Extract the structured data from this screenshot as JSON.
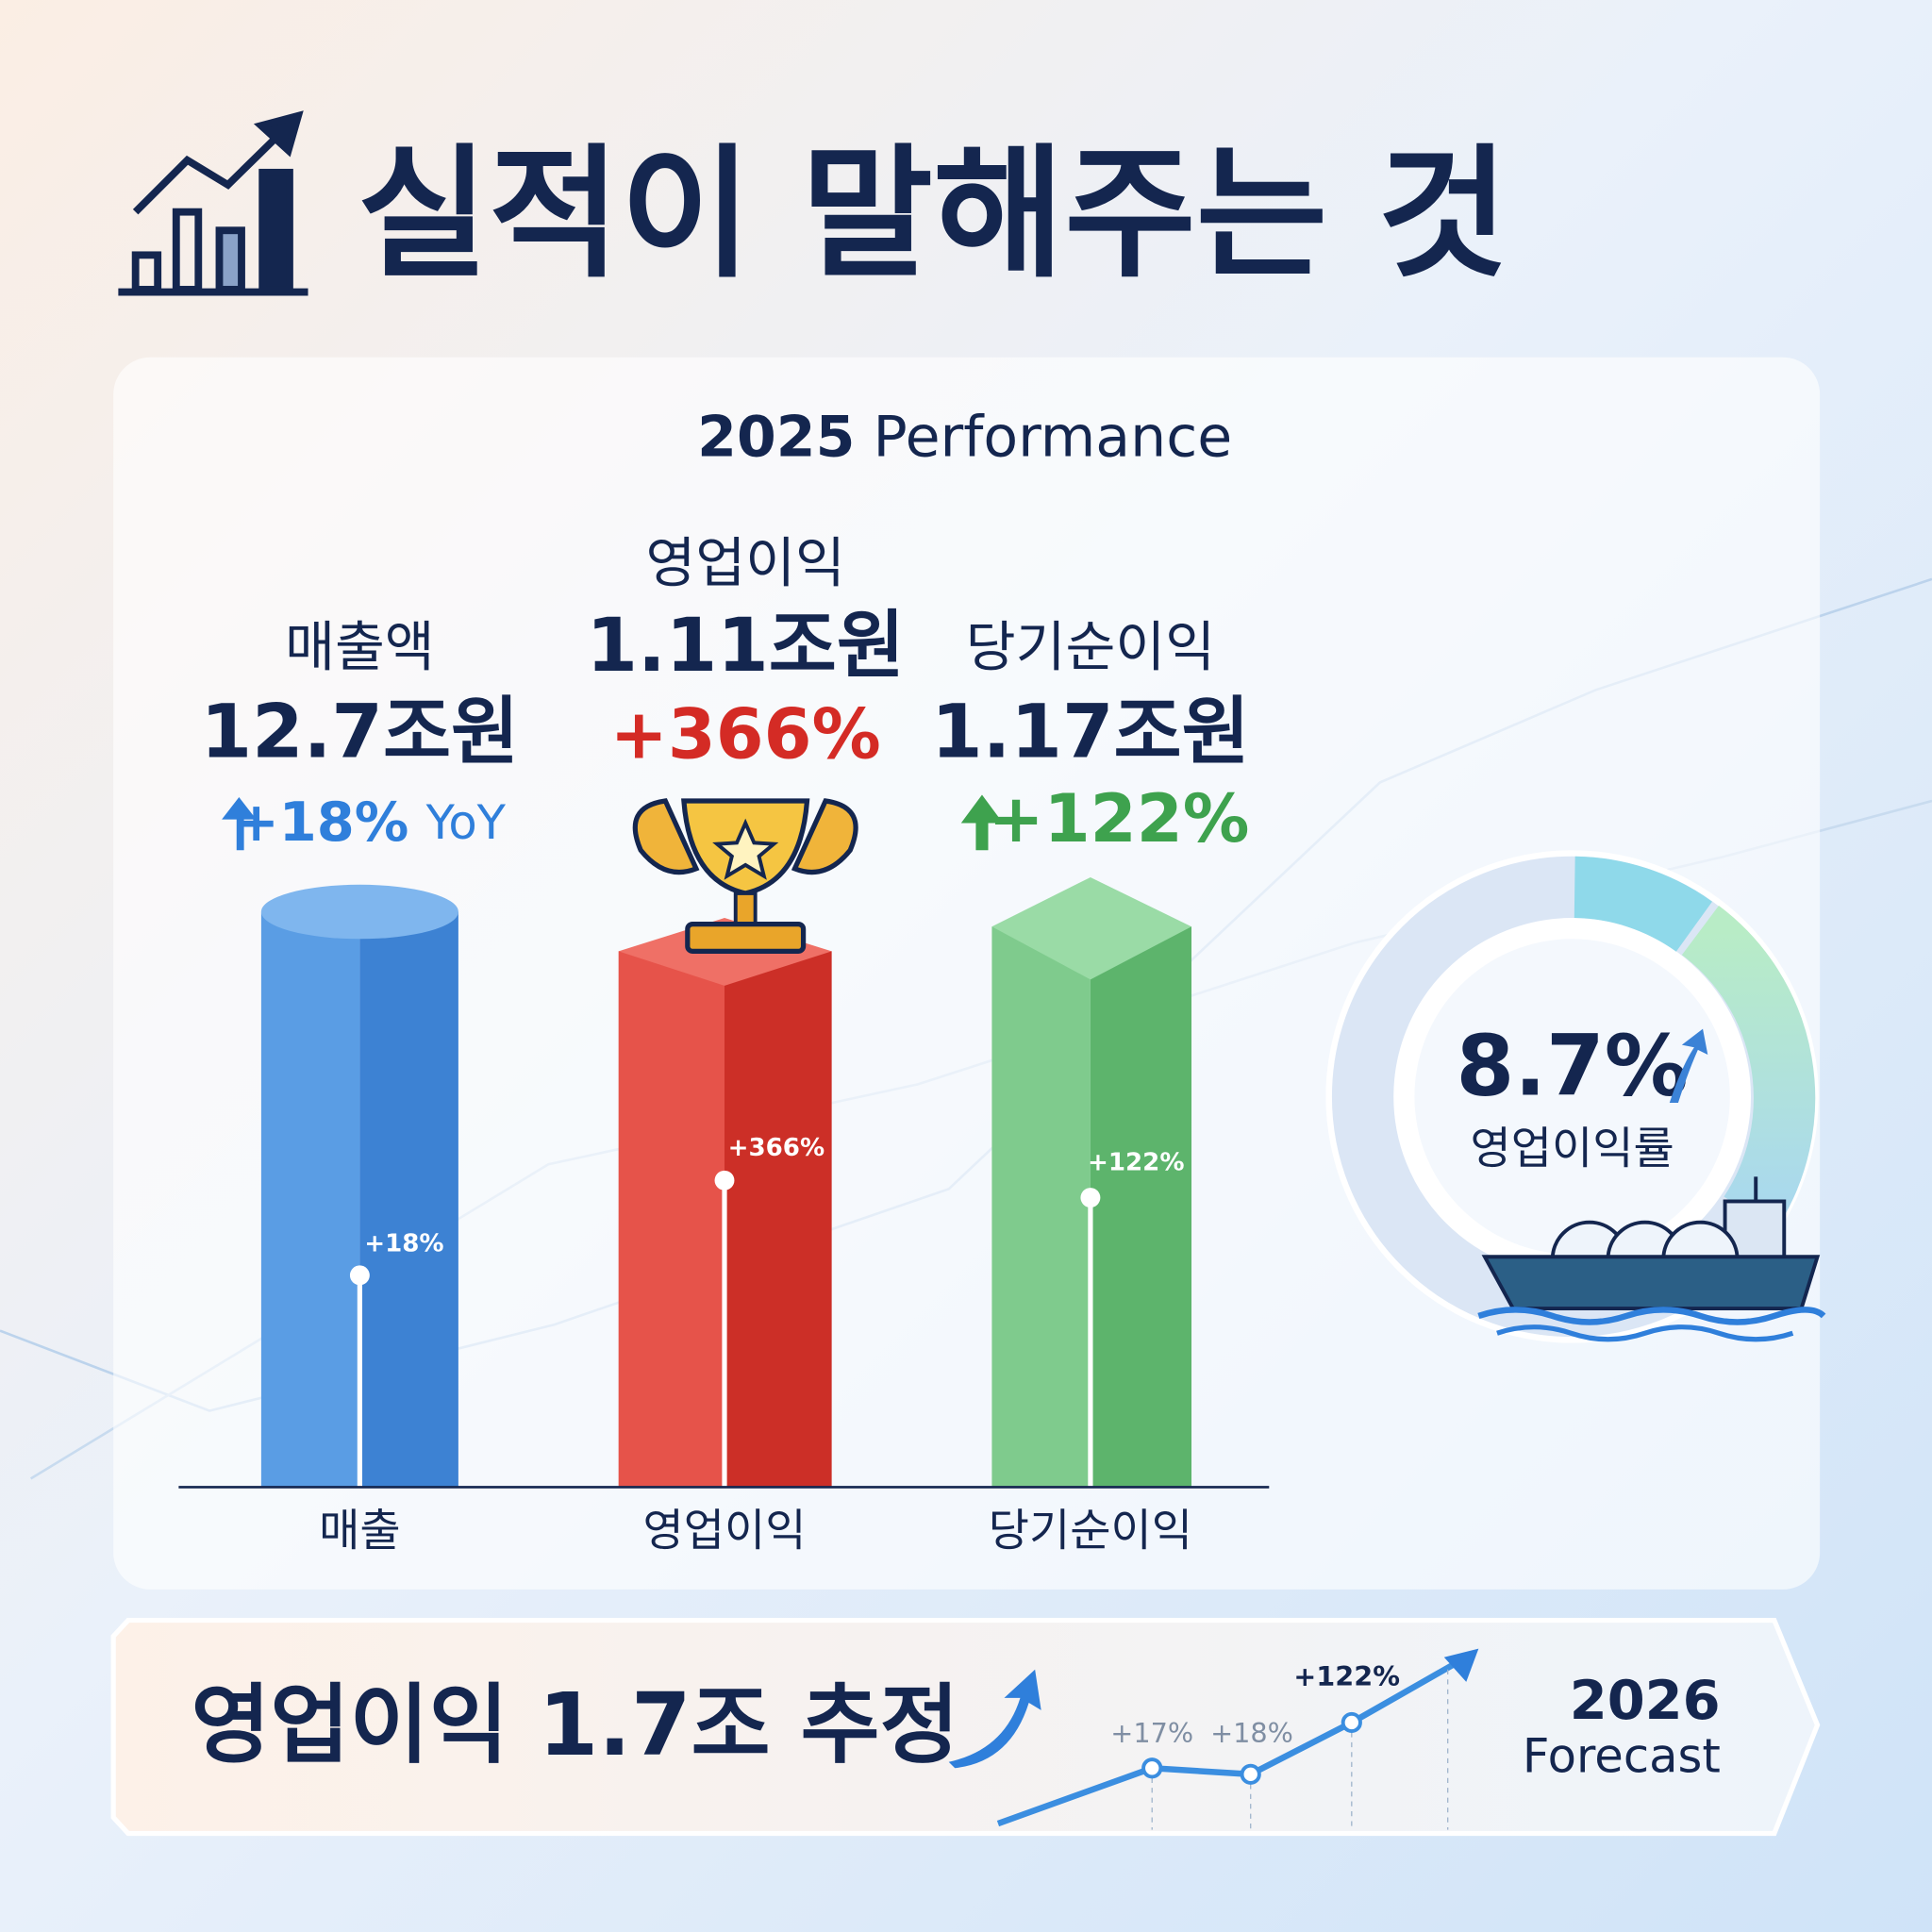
{
  "title": "실적이 말해주는 것",
  "panel": {
    "heading_year": "2025",
    "heading_label": "Performance",
    "metrics": [
      {
        "label": "매출액",
        "value": "12.7조원",
        "change": "+18%",
        "change_suffix": "YoY",
        "bar_label": "+18%",
        "axis_label": "매출"
      },
      {
        "label": "영업이익",
        "value": "1.11조원",
        "change": "+366%",
        "bar_label": "+366%",
        "axis_label": "영업이익"
      },
      {
        "label": "당기순이익",
        "value": "1.17조원",
        "change": "+122%",
        "bar_label": "+122%",
        "axis_label": "당기순이익"
      }
    ]
  },
  "donut": {
    "value": "8.7%",
    "label": "영업이익률"
  },
  "forecast": {
    "headline": "영업이익 1.7조 추정",
    "points": [
      "+17%",
      "+18%",
      "+122%"
    ],
    "year": "2026",
    "label": "Forecast"
  }
}
